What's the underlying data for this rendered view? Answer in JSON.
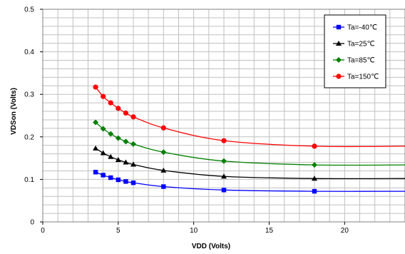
{
  "chart_data": {
    "type": "line",
    "title": "",
    "xlabel": "VDD (Volts)",
    "ylabel": "VDSon (Volts)",
    "xlim": [
      0,
      24
    ],
    "ylim": [
      0,
      0.5
    ],
    "xticks": [
      "0",
      "5",
      "10",
      "15",
      "20"
    ],
    "yticks": [
      "0",
      "0.1",
      "0.2",
      "0.3",
      "0.4",
      "0.5"
    ],
    "grid": true,
    "legend_position": "top-right",
    "series": [
      {
        "name": "Ta=-40℃",
        "color": "#0000ff",
        "marker": "square",
        "x": [
          3.5,
          4,
          4.5,
          5,
          5.5,
          6,
          8,
          12,
          18
        ],
        "y": [
          0.117,
          0.11,
          0.104,
          0.099,
          0.095,
          0.092,
          0.083,
          0.075,
          0.072
        ],
        "tail": [
          [
            24,
            0.072
          ]
        ]
      },
      {
        "name": "Ta=25℃",
        "color": "#000000",
        "marker": "triangle",
        "x": [
          3.5,
          4,
          4.5,
          5,
          5.5,
          6,
          8,
          12,
          18
        ],
        "y": [
          0.173,
          0.162,
          0.153,
          0.146,
          0.14,
          0.135,
          0.121,
          0.107,
          0.102
        ],
        "tail": [
          [
            24,
            0.102
          ]
        ]
      },
      {
        "name": "Ta=85℃",
        "color": "#008000",
        "marker": "diamond",
        "x": [
          3.5,
          4,
          4.5,
          5,
          5.5,
          6,
          8,
          12,
          18
        ],
        "y": [
          0.234,
          0.219,
          0.207,
          0.197,
          0.189,
          0.183,
          0.164,
          0.143,
          0.134
        ],
        "tail": [
          [
            24,
            0.134
          ]
        ]
      },
      {
        "name": "Ta=150℃",
        "color": "#ff0000",
        "marker": "circle",
        "x": [
          3.5,
          4,
          4.5,
          5,
          5.5,
          6,
          8,
          12,
          18
        ],
        "y": [
          0.317,
          0.295,
          0.28,
          0.267,
          0.256,
          0.247,
          0.221,
          0.191,
          0.178
        ],
        "tail": [
          [
            24,
            0.178
          ]
        ]
      }
    ]
  }
}
